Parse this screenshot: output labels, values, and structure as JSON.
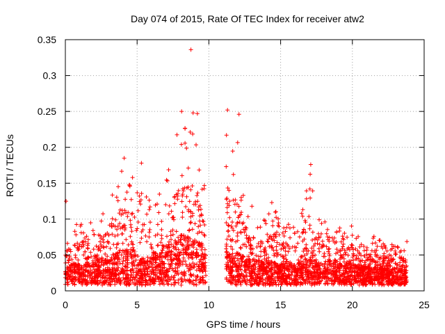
{
  "chart_data": {
    "type": "scatter",
    "title": "Day 074 of 2015, Rate Of TEC Index for receiver atw2",
    "xlabel": "GPS time / hours",
    "ylabel": "ROTI / TECUs",
    "xlim": [
      0,
      25
    ],
    "ylim": [
      0,
      0.35
    ],
    "x_ticks": [
      0,
      5,
      10,
      15,
      20,
      25
    ],
    "x_tick_labels": [
      "0",
      "5",
      "10",
      "15",
      "20",
      "25"
    ],
    "y_ticks": [
      0,
      0.05,
      0.1,
      0.15,
      0.2,
      0.25,
      0.3,
      0.35
    ],
    "y_tick_labels": [
      "0",
      "0.05",
      "0.1",
      "0.15",
      "0.2",
      "0.25",
      "0.3",
      "0.35"
    ],
    "grid": true,
    "marker": "+",
    "series_color": "#ff0000",
    "data_gap_hours": [
      9.8,
      11.2
    ],
    "envelope": {
      "x": [
        0.0,
        0.5,
        1.0,
        1.5,
        2.0,
        2.5,
        3.0,
        3.5,
        4.0,
        4.5,
        5.0,
        5.5,
        6.0,
        6.5,
        7.0,
        7.5,
        8.0,
        8.5,
        9.0,
        9.5,
        9.8,
        11.2,
        11.5,
        12.0,
        12.5,
        13.0,
        13.5,
        14.0,
        14.5,
        15.0,
        15.5,
        16.0,
        16.5,
        17.0,
        17.5,
        18.0,
        18.5,
        19.0,
        19.5,
        20.0,
        20.5,
        21.0,
        21.5,
        22.0,
        22.5,
        23.0,
        23.5,
        23.8
      ],
      "max_roti": [
        0.07,
        0.1,
        0.09,
        0.12,
        0.08,
        0.11,
        0.13,
        0.15,
        0.18,
        0.17,
        0.15,
        0.14,
        0.12,
        0.14,
        0.16,
        0.21,
        0.25,
        0.24,
        0.22,
        0.16,
        0.15,
        0.25,
        0.22,
        0.21,
        0.14,
        0.12,
        0.11,
        0.1,
        0.13,
        0.09,
        0.1,
        0.09,
        0.12,
        0.17,
        0.13,
        0.1,
        0.11,
        0.09,
        0.08,
        0.1,
        0.07,
        0.06,
        0.08,
        0.07,
        0.06,
        0.07,
        0.06,
        0.07
      ],
      "typical_roti": [
        0.025,
        0.03,
        0.03,
        0.035,
        0.03,
        0.035,
        0.04,
        0.045,
        0.05,
        0.05,
        0.045,
        0.04,
        0.04,
        0.045,
        0.05,
        0.06,
        0.07,
        0.07,
        0.065,
        0.06,
        0.05,
        0.06,
        0.05,
        0.045,
        0.04,
        0.035,
        0.035,
        0.03,
        0.035,
        0.03,
        0.03,
        0.03,
        0.035,
        0.04,
        0.035,
        0.03,
        0.035,
        0.03,
        0.03,
        0.03,
        0.025,
        0.025,
        0.025,
        0.025,
        0.02,
        0.025,
        0.02,
        0.025
      ]
    },
    "spikes": [
      {
        "x": 0.05,
        "y": 0.125
      },
      {
        "x": 8.75,
        "y": 0.336
      },
      {
        "x": 8.1,
        "y": 0.25
      },
      {
        "x": 8.9,
        "y": 0.248
      },
      {
        "x": 9.2,
        "y": 0.247
      },
      {
        "x": 11.3,
        "y": 0.252
      },
      {
        "x": 12.1,
        "y": 0.246
      },
      {
        "x": 17.1,
        "y": 0.176
      },
      {
        "x": 4.1,
        "y": 0.185
      },
      {
        "x": 5.3,
        "y": 0.178
      }
    ]
  }
}
